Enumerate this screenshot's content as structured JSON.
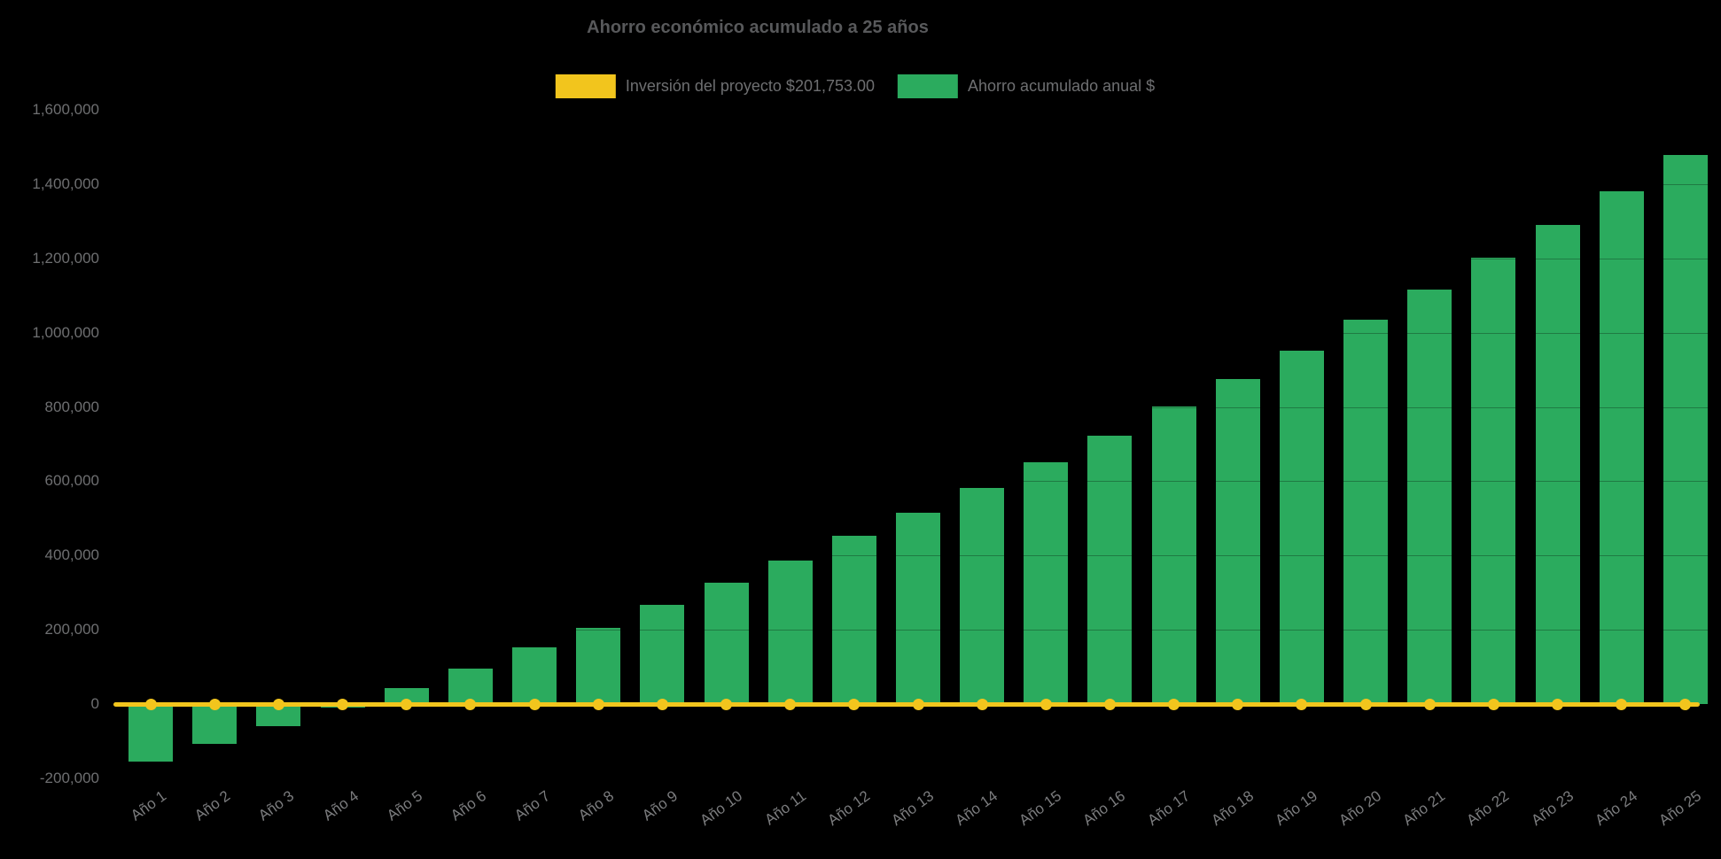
{
  "title": "Ahorro económico acumulado a 25 años",
  "colors": {
    "background": "#000000",
    "investment_yellow": "#F2C51D",
    "savings_green": "#2BAB5E",
    "title_gray": "#58595b",
    "axis_text_gray": "#6e6f71"
  },
  "legend": {
    "items": [
      {
        "id": "investment",
        "label": "Inversión del proyecto $201,753.00",
        "color": "#F2C51D"
      },
      {
        "id": "savings",
        "label": "Ahorro acumulado anual $",
        "color": "#2BAB5E"
      }
    ]
  },
  "chart_data": {
    "type": "bar",
    "title": "Ahorro económico acumulado a 25 años",
    "xlabel": "",
    "ylabel": "",
    "grid": "off",
    "legend_position": "top-center",
    "categories": [
      "Año 1",
      "Año 2",
      "Año 3",
      "Año 4",
      "Año 5",
      "Año 6",
      "Año 7",
      "Año 8",
      "Año 9",
      "Año 10",
      "Año 11",
      "Año 12",
      "Año 13",
      "Año 14",
      "Año 15",
      "Año 16",
      "Año 17",
      "Año 18",
      "Año 19",
      "Año 20",
      "Año 21",
      "Año 22",
      "Año 23",
      "Año 24",
      "Año 25"
    ],
    "series": [
      {
        "name": "Ahorro acumulado anual $",
        "type": "bar",
        "color": "#2BAB5E",
        "values": [
          -155000,
          -108000,
          -60000,
          -10000,
          44000,
          95000,
          152000,
          205000,
          266000,
          326000,
          386000,
          452000,
          515000,
          582000,
          652000,
          723000,
          801000,
          876000,
          951000,
          1034000,
          1117000,
          1201000,
          1290000,
          1381000,
          1478000
        ]
      },
      {
        "name": "Inversión del proyecto $201,753.00",
        "type": "line",
        "color": "#F2C51D",
        "marker": "circle",
        "values": [
          0,
          0,
          0,
          0,
          0,
          0,
          0,
          0,
          0,
          0,
          0,
          0,
          0,
          0,
          0,
          0,
          0,
          0,
          0,
          0,
          0,
          0,
          0,
          0,
          0
        ]
      }
    ],
    "y_axis": {
      "min": -200000,
      "max": 1600000,
      "tick_step": 200000,
      "tick_labels": [
        "1,600,000",
        "1,400,000",
        "1,200,000",
        "1,000,000",
        "800,000",
        "600,000",
        "400,000",
        "200,000",
        "0",
        "-200,000"
      ]
    }
  }
}
